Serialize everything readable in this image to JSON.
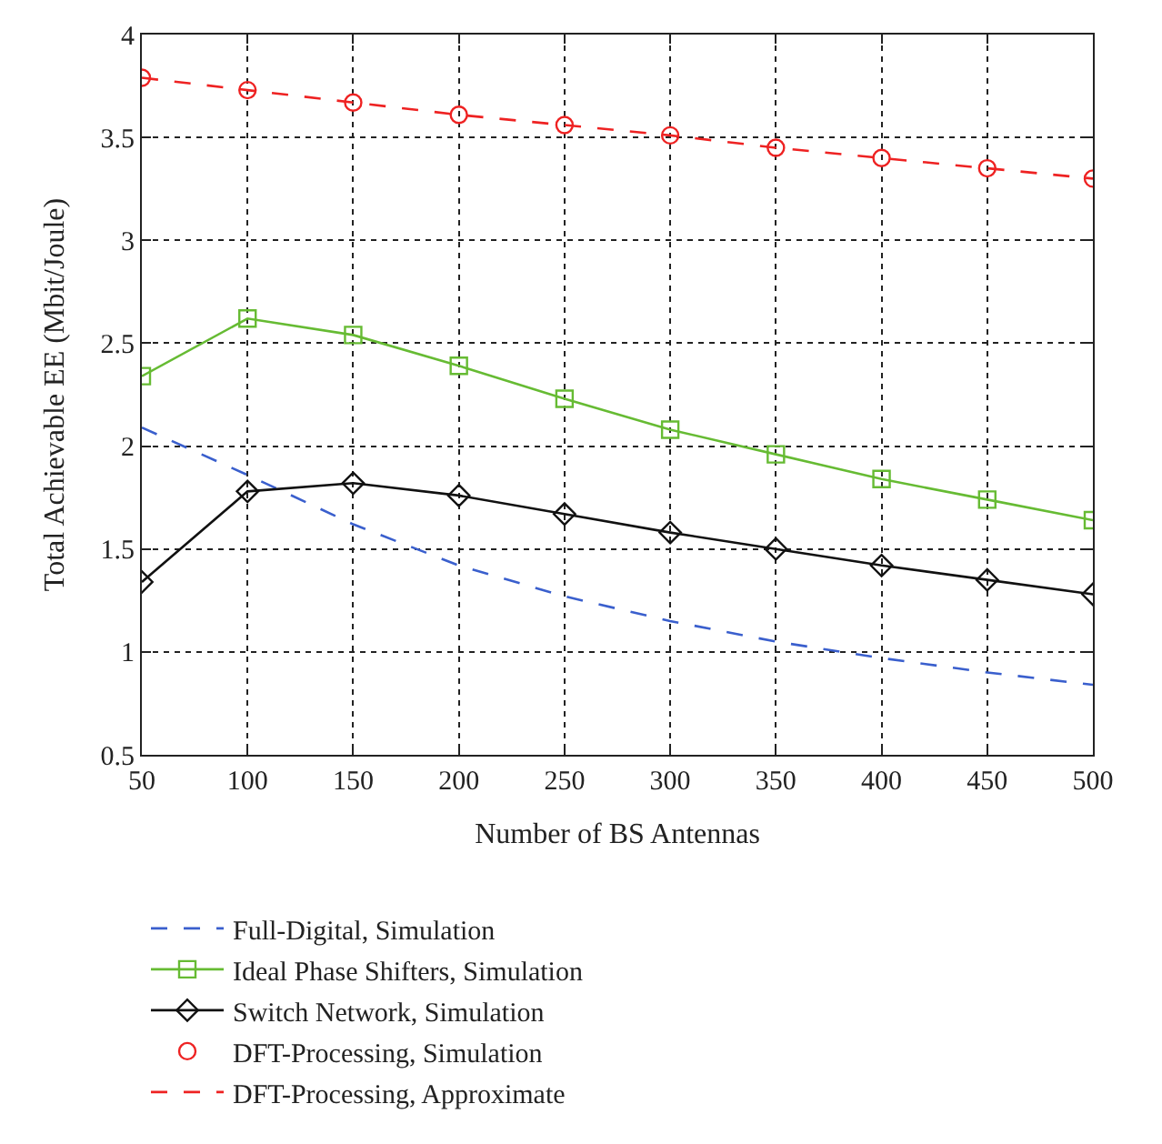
{
  "chart_data": {
    "type": "line",
    "xlabel": "Number of BS Antennas",
    "ylabel": "Total Achievable EE (Mbit/Joule)",
    "x": [
      50,
      100,
      150,
      200,
      250,
      300,
      350,
      400,
      450,
      500
    ],
    "xlim": [
      50,
      500
    ],
    "xticks": [
      50,
      100,
      150,
      200,
      250,
      300,
      350,
      400,
      450,
      500
    ],
    "ylim": [
      0.5,
      4
    ],
    "yticks": [
      0.5,
      1,
      1.5,
      2,
      2.5,
      3,
      3.5,
      4
    ],
    "grid": true,
    "legend": "bottom left",
    "series": [
      {
        "name": "Full-Digital, Simulation",
        "color": "#3a5fcd",
        "line_style": "dashed",
        "marker": "none",
        "values": [
          2.09,
          1.86,
          1.62,
          1.42,
          1.27,
          1.15,
          1.05,
          0.97,
          0.9,
          0.84
        ]
      },
      {
        "name": "Ideal Phase Shifters, Simulation",
        "color": "#66bb33",
        "line_style": "solid",
        "marker": "square",
        "values": [
          2.34,
          2.62,
          2.54,
          2.39,
          2.23,
          2.08,
          1.96,
          1.84,
          1.74,
          1.64
        ]
      },
      {
        "name": "Switch Network, Simulation",
        "color": "#111111",
        "line_style": "solid",
        "marker": "diamond",
        "values": [
          1.34,
          1.78,
          1.82,
          1.76,
          1.67,
          1.58,
          1.5,
          1.42,
          1.35,
          1.28
        ]
      },
      {
        "name": "DFT-Processing, Simulation",
        "type": "scatter",
        "color": "#ee2222",
        "marker": "circle",
        "values": [
          3.79,
          3.73,
          3.67,
          3.61,
          3.56,
          3.51,
          3.45,
          3.4,
          3.35,
          3.3
        ]
      },
      {
        "name": "DFT-Processing, Approximate",
        "color": "#ee2222",
        "line_style": "dashed",
        "marker": "none",
        "values": [
          3.79,
          3.73,
          3.67,
          3.61,
          3.56,
          3.51,
          3.45,
          3.4,
          3.35,
          3.3
        ]
      }
    ]
  }
}
